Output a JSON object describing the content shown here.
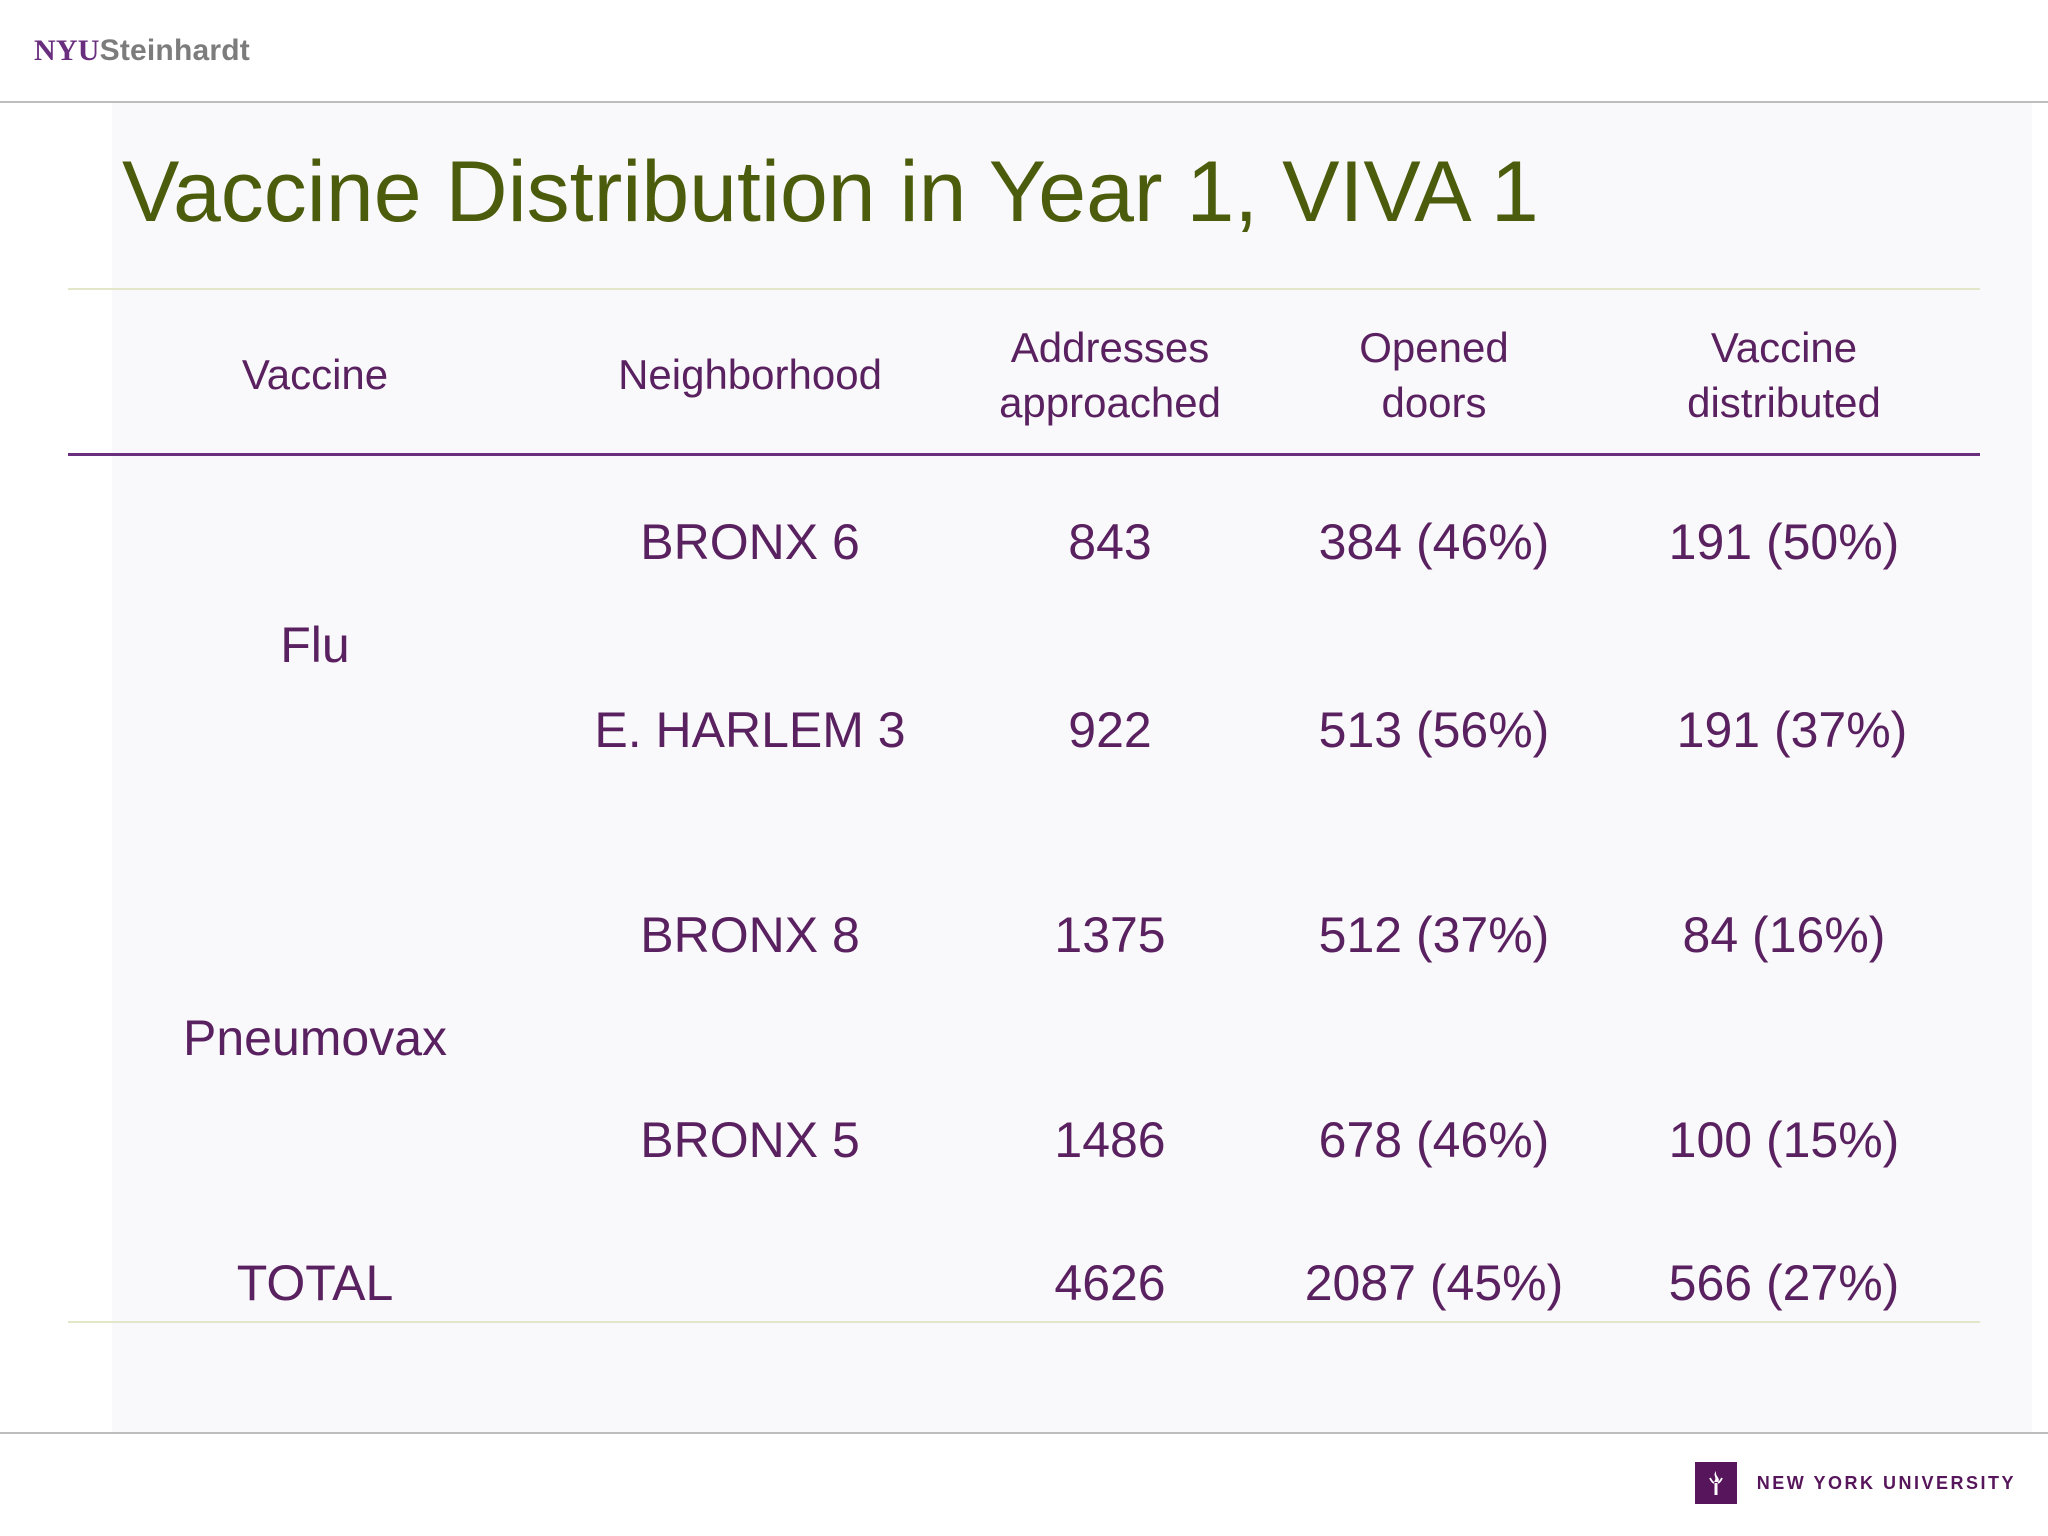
{
  "header": {
    "brand_nyu": "NYU",
    "brand_steinhardt": "Steinhardt"
  },
  "slide": {
    "title": "Vaccine Distribution in Year 1, VIVA 1",
    "table": {
      "columns": [
        [
          "Vaccine"
        ],
        [
          "Neighborhood"
        ],
        [
          "Addresses",
          "approached"
        ],
        [
          "Opened",
          "doors"
        ],
        [
          "Vaccine",
          "distributed"
        ]
      ],
      "groups": [
        "Flu",
        "Pneumovax"
      ],
      "rows": [
        {
          "neighborhood": "BRONX 6",
          "addresses": "843",
          "opened": "384 (46%)",
          "distributed": "191 (50%)"
        },
        {
          "neighborhood": "E. HARLEM 3",
          "addresses": "922",
          "opened": "513 (56%)",
          "distributed": "191 (37%)"
        },
        {
          "neighborhood": "BRONX 8",
          "addresses": "1375",
          "opened": "512 (37%)",
          "distributed": "84 (16%)"
        },
        {
          "neighborhood": "BRONX 5",
          "addresses": "1486",
          "opened": "678 (46%)",
          "distributed": "100 (15%)"
        }
      ],
      "total": {
        "label": "TOTAL",
        "addresses": "4626",
        "opened": "2087 (45%)",
        "distributed": "566 (27%)"
      }
    }
  },
  "footer": {
    "logo_text": "NEW YORK UNIVERSITY",
    "logo_icon": "nyu-torch-icon"
  },
  "colors": {
    "title": "#4b5c0c",
    "table_text": "#5a2160",
    "header_rule": "#6a2e7e",
    "table_rule": "#e3e6c8",
    "brand_purple": "#57165b"
  }
}
